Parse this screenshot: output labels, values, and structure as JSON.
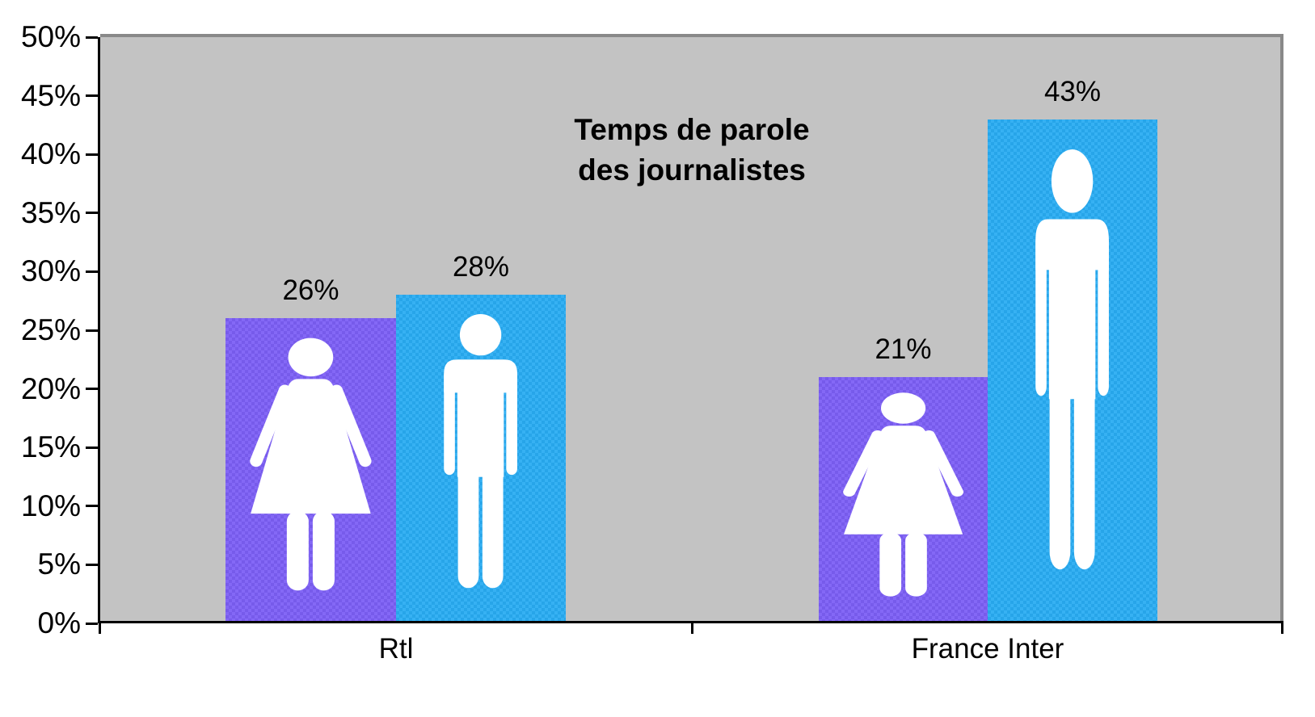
{
  "chart_data": {
    "type": "bar",
    "title": "Temps de parole des journalistes",
    "title_lines": [
      "Temps de parole",
      "des journalistes"
    ],
    "categories": [
      "Rtl",
      "France Inter"
    ],
    "series": [
      {
        "name": "femmes",
        "icon": "female-icon",
        "color": "#7C5FF5",
        "values": [
          26,
          21
        ],
        "value_labels": [
          "26%",
          "21%"
        ]
      },
      {
        "name": "hommes",
        "icon": "male-icon",
        "color": "#29ACF2",
        "values": [
          28,
          43
        ],
        "value_labels": [
          "28%",
          "43%"
        ]
      }
    ],
    "xlabel": "",
    "ylabel": "",
    "ylim": [
      0,
      50
    ],
    "ytick_step": 5,
    "ytick_labels": [
      "0%",
      "5%",
      "10%",
      "15%",
      "20%",
      "25%",
      "30%",
      "35%",
      "40%",
      "45%",
      "50%"
    ],
    "grid": false,
    "legend": "none",
    "plot_background": "#C3C3C3",
    "frame_shadow_color": "#898989",
    "axis_color": "#000000",
    "text_color": "#000000"
  }
}
